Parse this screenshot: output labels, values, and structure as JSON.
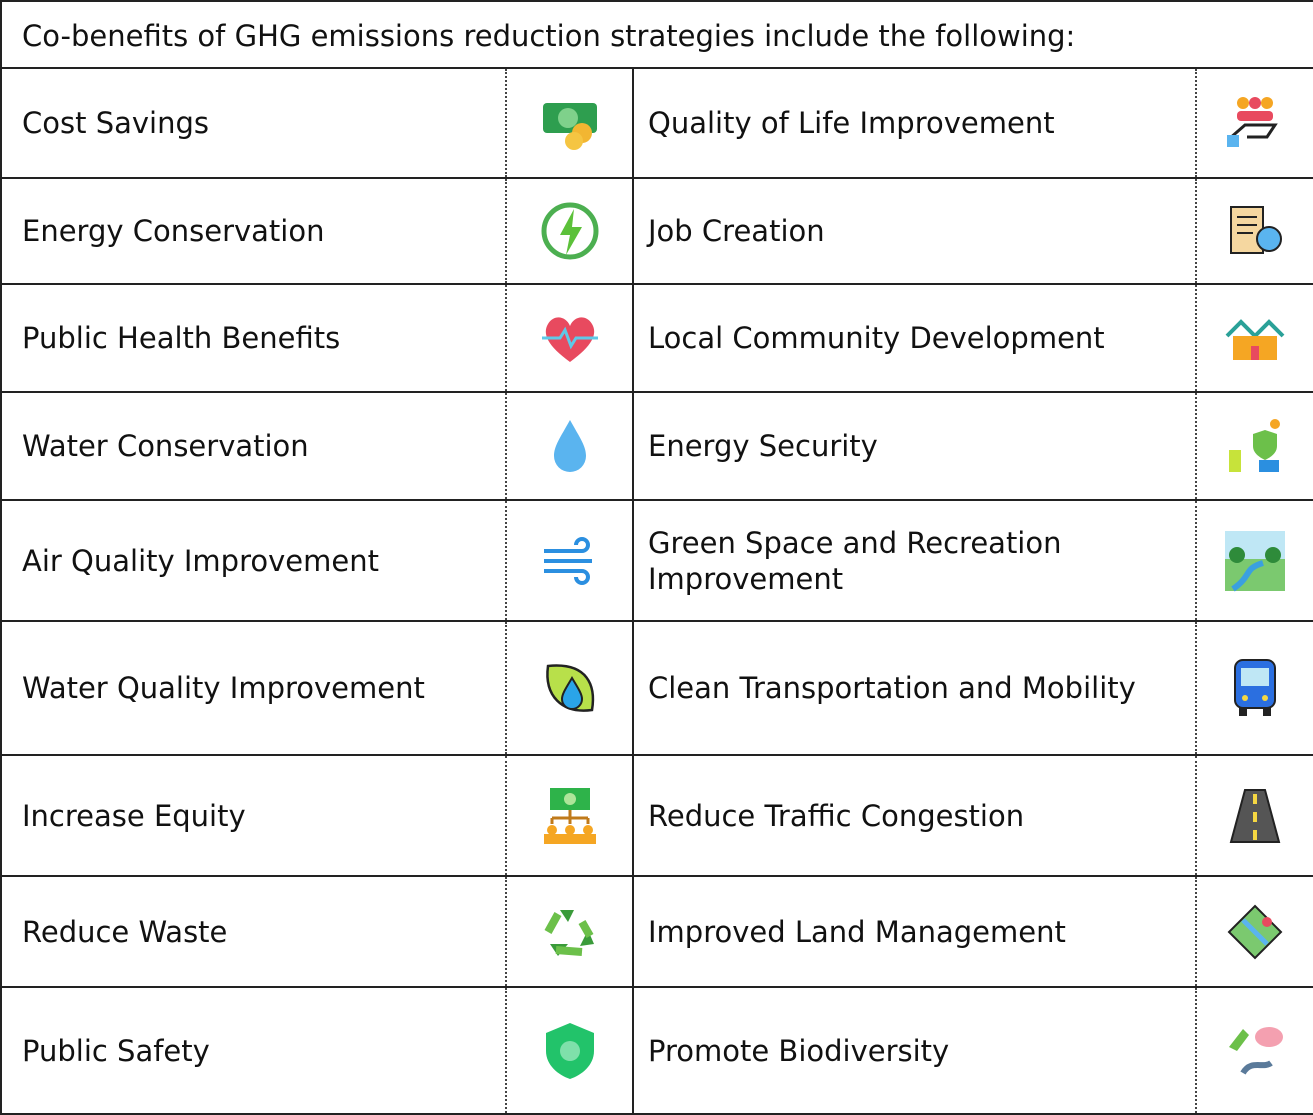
{
  "header": {
    "title": "Co-benefits of GHG emissions reduction strategies include the following:"
  },
  "table": {
    "rows": [
      [
        "Cost Savings",
        "Quality of Life Improvement"
      ],
      [
        "Energy Conservation",
        "Job Creation"
      ],
      [
        "Public Health Benefits",
        "Local Community Development"
      ],
      [
        "Water Conservation",
        "Energy Security"
      ],
      [
        "Air Quality Improvement",
        "Green Space and Recreation Improvement"
      ],
      [
        "Water Quality Improvement",
        "Clean Transportation and Mobility"
      ],
      [
        "Increase Equity",
        "Reduce Traffic Congestion"
      ],
      [
        "Reduce Waste",
        "Improved Land Management"
      ],
      [
        "Public Safety",
        "Promote Biodiversity"
      ]
    ]
  }
}
